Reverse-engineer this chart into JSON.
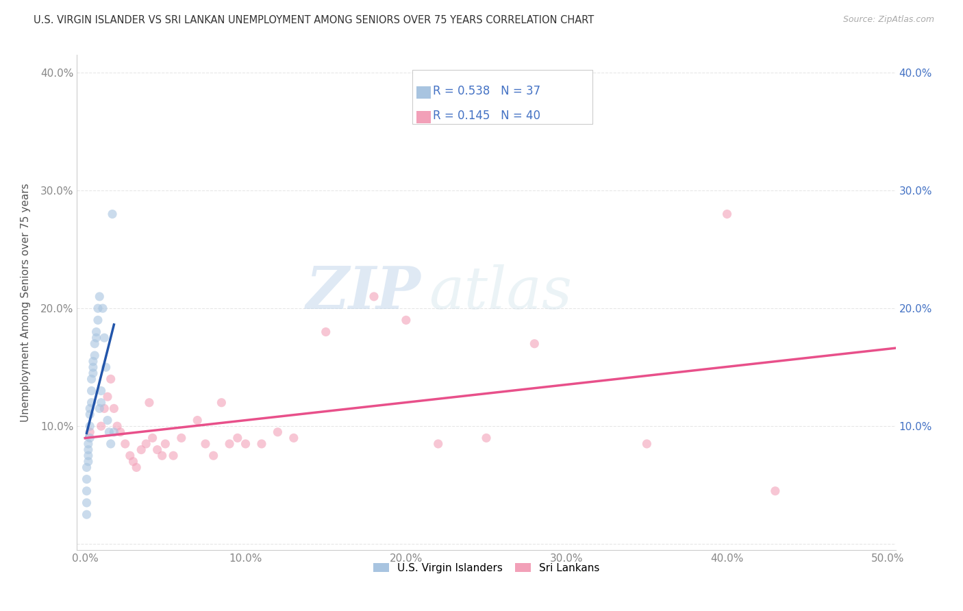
{
  "title": "U.S. VIRGIN ISLANDER VS SRI LANKAN UNEMPLOYMENT AMONG SENIORS OVER 75 YEARS CORRELATION CHART",
  "source": "Source: ZipAtlas.com",
  "ylabel": "Unemployment Among Seniors over 75 years",
  "legend_label1": "U.S. Virgin Islanders",
  "legend_label2": "Sri Lankans",
  "r1": 0.538,
  "n1": 37,
  "r2": 0.145,
  "n2": 40,
  "xlim": [
    -0.005,
    0.505
  ],
  "ylim": [
    -0.005,
    0.415
  ],
  "xticks": [
    0.0,
    0.1,
    0.2,
    0.3,
    0.4,
    0.5
  ],
  "yticks": [
    0.0,
    0.1,
    0.2,
    0.3,
    0.4
  ],
  "xtick_labels": [
    "0.0%",
    "10.0%",
    "20.0%",
    "30.0%",
    "40.0%",
    "50.0%"
  ],
  "ytick_labels_left": [
    "",
    "10.0%",
    "20.0%",
    "30.0%",
    "40.0%"
  ],
  "ytick_labels_right": [
    "",
    "10.0%",
    "20.0%",
    "30.0%",
    "40.0%"
  ],
  "color_blue": "#a8c4e0",
  "color_pink": "#f2a0b8",
  "color_blue_line": "#2255aa",
  "color_pink_line": "#e8508a",
  "color_blue_dashed": "#88aacc",
  "scatter_alpha": 0.6,
  "scatter_size": 90,
  "vi_x": [
    0.001,
    0.001,
    0.001,
    0.001,
    0.001,
    0.002,
    0.002,
    0.002,
    0.002,
    0.003,
    0.003,
    0.003,
    0.003,
    0.004,
    0.004,
    0.004,
    0.005,
    0.005,
    0.005,
    0.006,
    0.006,
    0.007,
    0.007,
    0.008,
    0.008,
    0.009,
    0.009,
    0.01,
    0.01,
    0.011,
    0.012,
    0.013,
    0.014,
    0.015,
    0.016,
    0.017,
    0.018
  ],
  "vi_y": [
    0.025,
    0.035,
    0.045,
    0.055,
    0.065,
    0.07,
    0.075,
    0.08,
    0.085,
    0.09,
    0.1,
    0.11,
    0.115,
    0.12,
    0.13,
    0.14,
    0.145,
    0.15,
    0.155,
    0.16,
    0.17,
    0.175,
    0.18,
    0.19,
    0.2,
    0.21,
    0.115,
    0.12,
    0.13,
    0.2,
    0.175,
    0.15,
    0.105,
    0.095,
    0.085,
    0.28,
    0.095
  ],
  "sri_x": [
    0.003,
    0.01,
    0.012,
    0.014,
    0.016,
    0.018,
    0.02,
    0.022,
    0.025,
    0.028,
    0.03,
    0.032,
    0.035,
    0.038,
    0.04,
    0.042,
    0.045,
    0.048,
    0.05,
    0.055,
    0.06,
    0.07,
    0.075,
    0.08,
    0.085,
    0.09,
    0.095,
    0.1,
    0.11,
    0.12,
    0.13,
    0.15,
    0.18,
    0.2,
    0.22,
    0.25,
    0.28,
    0.35,
    0.4,
    0.43
  ],
  "sri_y": [
    0.095,
    0.1,
    0.115,
    0.125,
    0.14,
    0.115,
    0.1,
    0.095,
    0.085,
    0.075,
    0.07,
    0.065,
    0.08,
    0.085,
    0.12,
    0.09,
    0.08,
    0.075,
    0.085,
    0.075,
    0.09,
    0.105,
    0.085,
    0.075,
    0.12,
    0.085,
    0.09,
    0.085,
    0.085,
    0.095,
    0.09,
    0.18,
    0.21,
    0.19,
    0.085,
    0.09,
    0.17,
    0.085,
    0.28,
    0.045
  ],
  "watermark_zip": "ZIP",
  "watermark_atlas": "atlas",
  "bg_color": "#ffffff",
  "grid_color": "#dddddd",
  "tick_color_left": "#888888",
  "tick_color_right": "#4472c4",
  "title_color": "#333333",
  "source_color": "#aaaaaa",
  "ylabel_color": "#555555"
}
